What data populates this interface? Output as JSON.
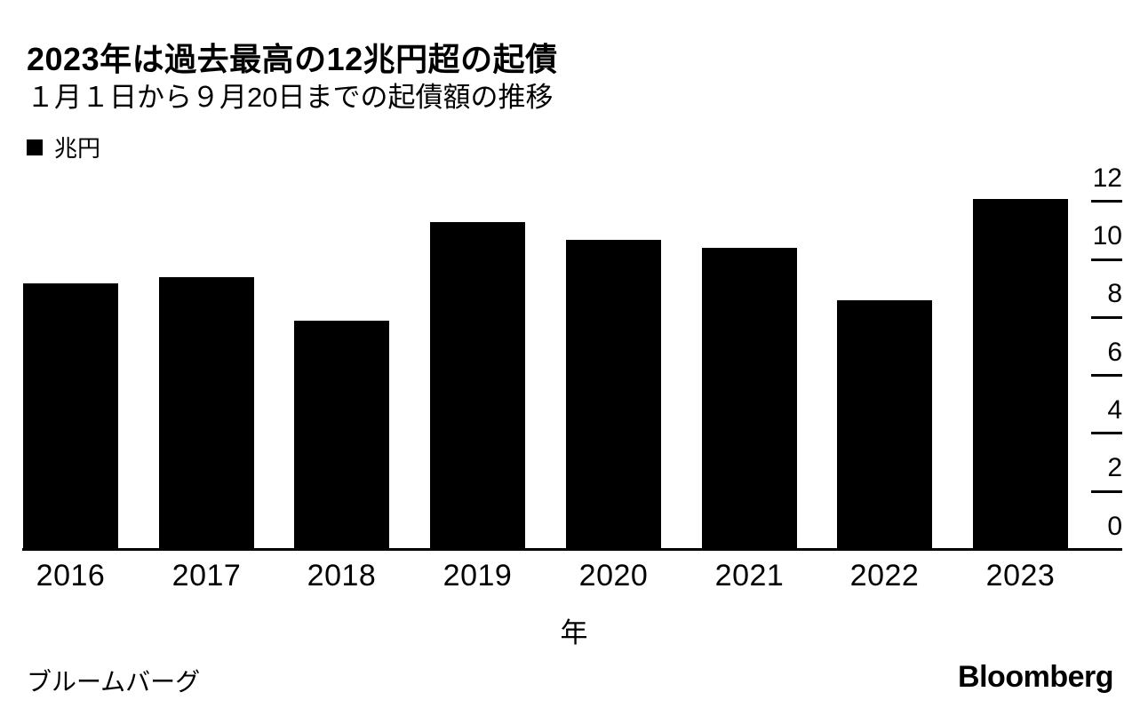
{
  "chart_data": {
    "type": "bar",
    "title": "2023年は過去最高の12兆円超の起債",
    "subtitle": "１月１日から９月20日までの起債額の推移",
    "series_name": "兆円",
    "categories": [
      "2016",
      "2017",
      "2018",
      "2019",
      "2020",
      "2021",
      "2022",
      "2023"
    ],
    "values": [
      9.2,
      9.4,
      7.9,
      11.3,
      10.7,
      10.4,
      8.6,
      12.1
    ],
    "xlabel": "年",
    "ylabel": "兆円",
    "ylim": [
      0,
      12
    ],
    "yticks": [
      0,
      2,
      4,
      6,
      8,
      10,
      12
    ],
    "y_axis_side": "right",
    "grid": false,
    "legend_position": "top-left",
    "bar_color": "#000000",
    "background_color": "#ffffff",
    "source": "ブルームバーグ",
    "brand": "Bloomberg"
  }
}
